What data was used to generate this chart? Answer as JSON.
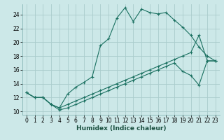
{
  "xlabel": "Humidex (Indice chaleur)",
  "background_color": "#cce8e8",
  "grid_color": "#aacccc",
  "line_color": "#1a7060",
  "xlim": [
    -0.5,
    23.5
  ],
  "ylim": [
    9.5,
    25.5
  ],
  "xticks": [
    0,
    1,
    2,
    3,
    4,
    5,
    6,
    7,
    8,
    9,
    10,
    11,
    12,
    13,
    14,
    15,
    16,
    17,
    18,
    19,
    20,
    21,
    22,
    23
  ],
  "yticks": [
    10,
    12,
    14,
    16,
    18,
    20,
    22,
    24
  ],
  "line1_x": [
    0,
    1,
    2,
    3,
    4,
    5,
    6,
    7,
    8,
    9,
    10,
    11,
    12,
    13,
    14,
    15,
    16,
    17,
    18,
    19,
    20,
    21,
    22,
    23
  ],
  "line1_y": [
    12.7,
    12.0,
    12.0,
    11.0,
    10.5,
    12.5,
    13.5,
    14.2,
    15.0,
    19.5,
    20.5,
    23.5,
    25.0,
    23.0,
    24.8,
    24.3,
    24.1,
    24.3,
    23.2,
    22.2,
    21.0,
    19.3,
    18.0,
    17.3
  ],
  "line2_x": [
    0,
    1,
    2,
    3,
    4,
    5,
    6,
    7,
    8,
    9,
    10,
    11,
    12,
    13,
    14,
    15,
    16,
    17,
    18,
    19,
    20,
    21,
    22,
    23
  ],
  "line2_y": [
    12.7,
    12.0,
    12.0,
    11.0,
    10.5,
    11.0,
    11.5,
    12.0,
    12.5,
    13.0,
    13.5,
    14.0,
    14.5,
    15.0,
    15.5,
    16.0,
    16.5,
    17.0,
    17.5,
    18.0,
    18.5,
    21.0,
    17.3,
    17.3
  ],
  "line3_x": [
    0,
    1,
    2,
    3,
    4,
    5,
    6,
    7,
    8,
    9,
    10,
    11,
    12,
    13,
    14,
    15,
    16,
    17,
    18,
    19,
    20,
    21,
    22,
    23
  ],
  "line3_y": [
    12.7,
    12.0,
    12.0,
    11.0,
    10.2,
    10.5,
    11.0,
    11.5,
    12.0,
    12.5,
    13.0,
    13.5,
    14.0,
    14.5,
    15.0,
    15.5,
    16.0,
    16.5,
    17.0,
    15.8,
    15.2,
    13.8,
    17.3,
    17.3
  ]
}
